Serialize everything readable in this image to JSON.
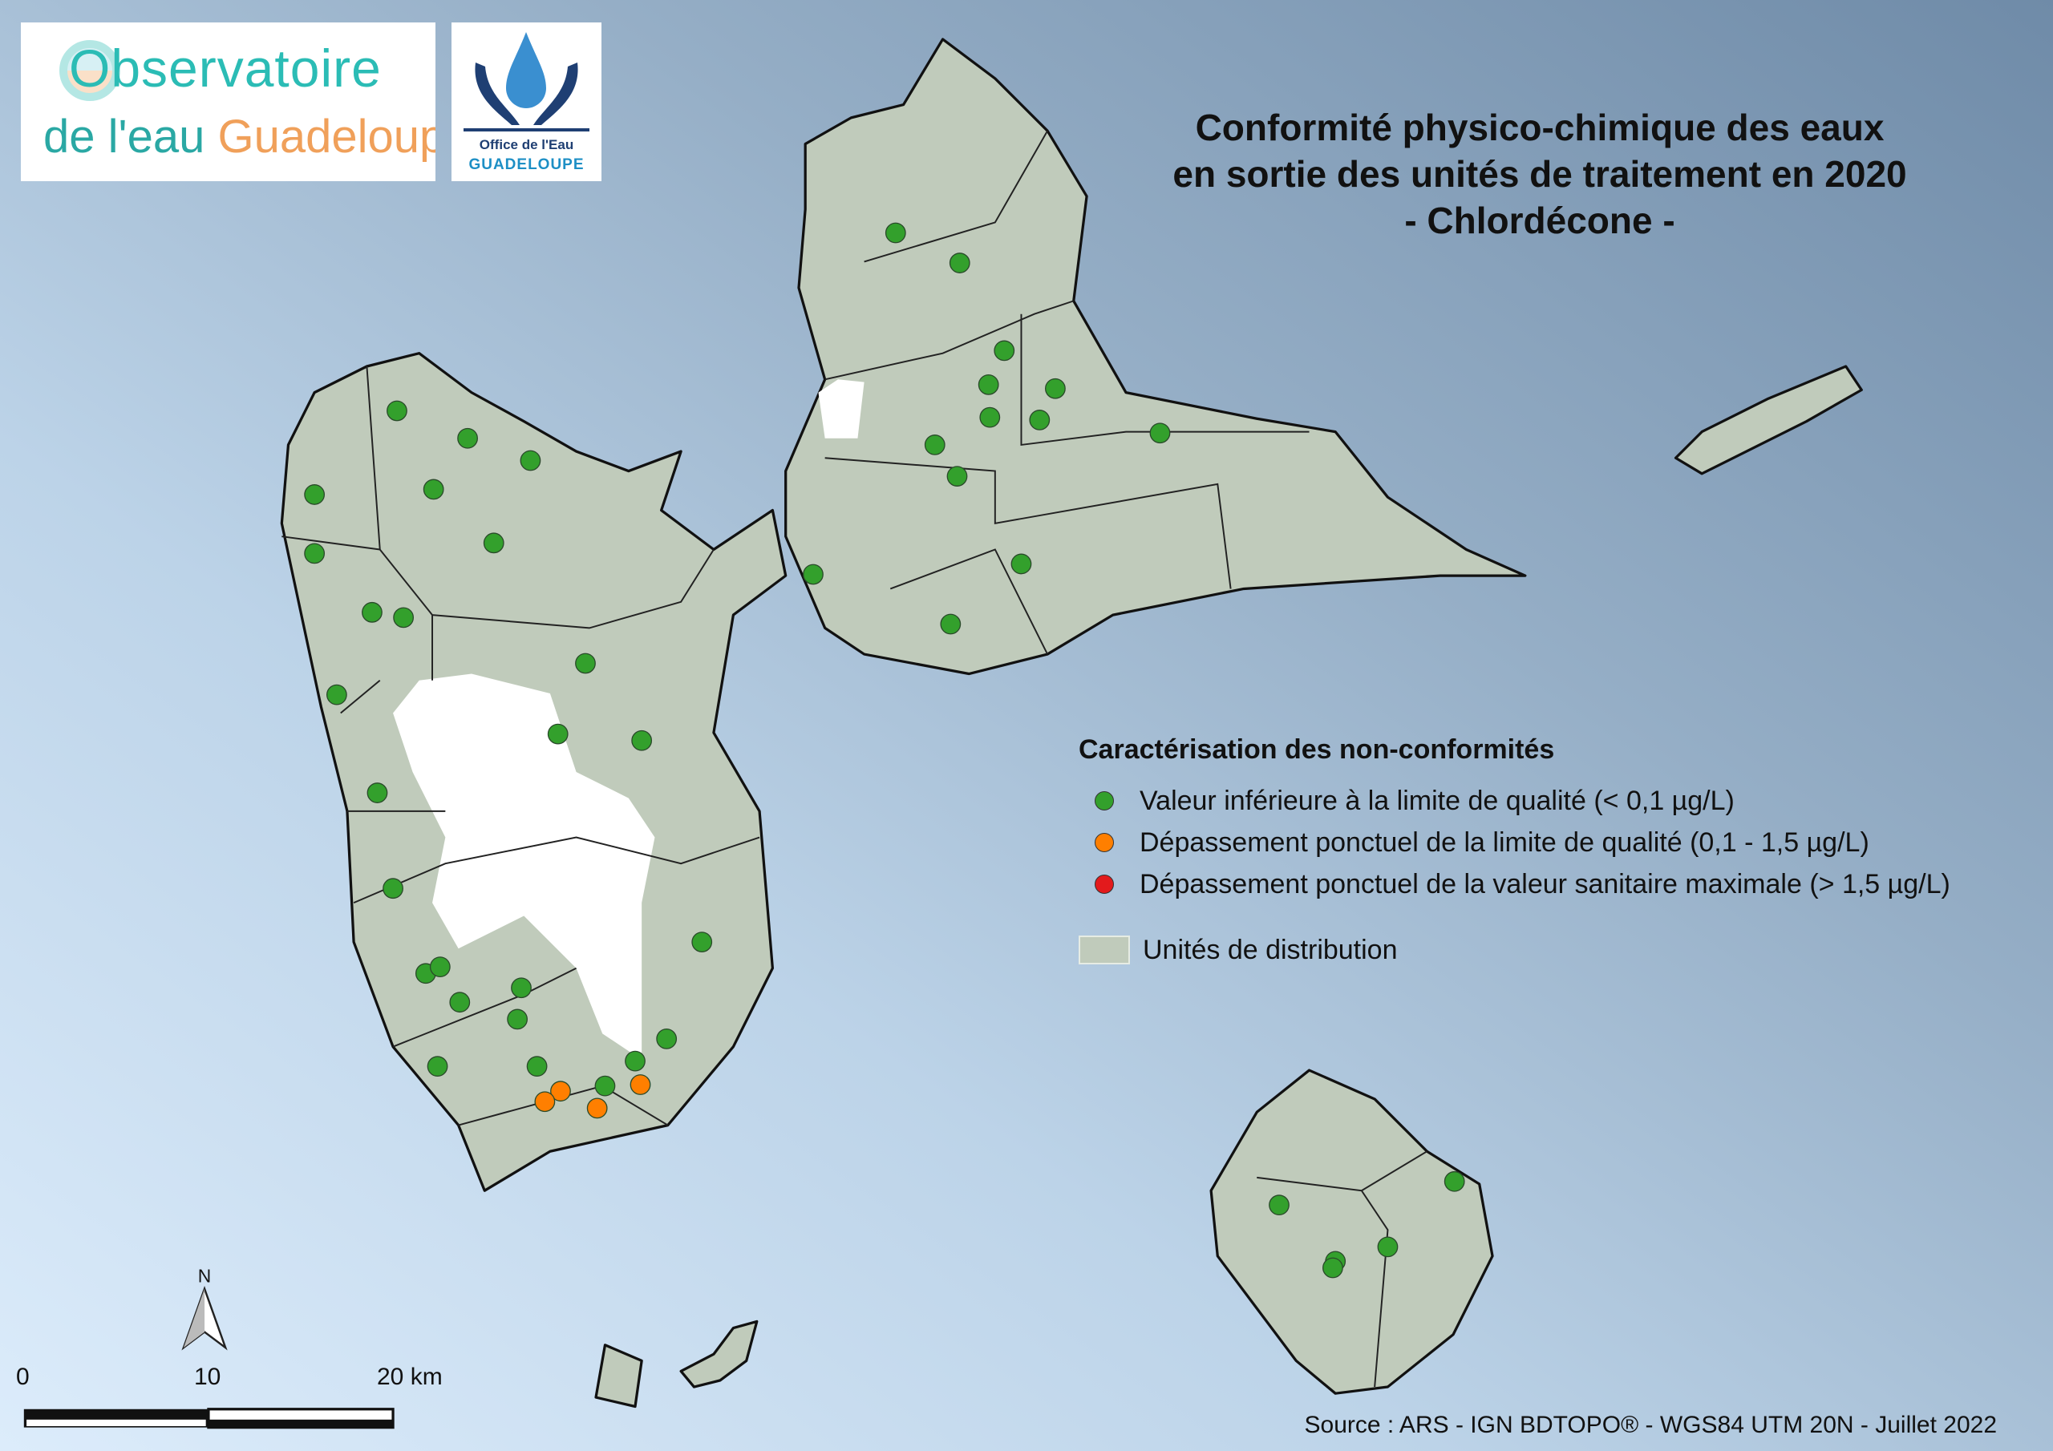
{
  "logos": {
    "observatoire": {
      "line1": "Observatoire",
      "line2a": "de l'eau",
      "line2b": "Guadeloupe"
    },
    "office": {
      "line1": "Office de l'Eau",
      "line2": "GUADELOUPE"
    }
  },
  "title": {
    "line1": "Conformité physico-chimique des eaux",
    "line2": "en sortie des unités de traitement en 2020",
    "line3": "- Chlordécone -"
  },
  "legend": {
    "heading": "Caractérisation des non-conformités",
    "items": [
      {
        "label": "Valeur inférieure à la limite de qualité (< 0,1 µg/L)",
        "color": "#33a02c"
      },
      {
        "label": "Dépassement ponctuel de la limite de qualité (0,1 - 1,5 µg/L)",
        "color": "#ff7f00"
      },
      {
        "label": "Dépassement ponctuel de la valeur sanitaire maximale (> 1,5 µg/L)",
        "color": "#e31a1c"
      }
    ],
    "area_label": "Unités de distribution",
    "area_color": "#c0cbbb"
  },
  "north_arrow": {
    "label": "N"
  },
  "scale_bar": {
    "labels": [
      "0",
      "10",
      "20 km"
    ]
  },
  "source": "Source : ARS - IGN BDTOPO® - WGS84 UTM 20N - Juillet 2022",
  "map": {
    "sample_points": {
      "conforme_count": 44,
      "depassement_limite_count": 4,
      "depassement_sanitaire_count": 0
    }
  }
}
